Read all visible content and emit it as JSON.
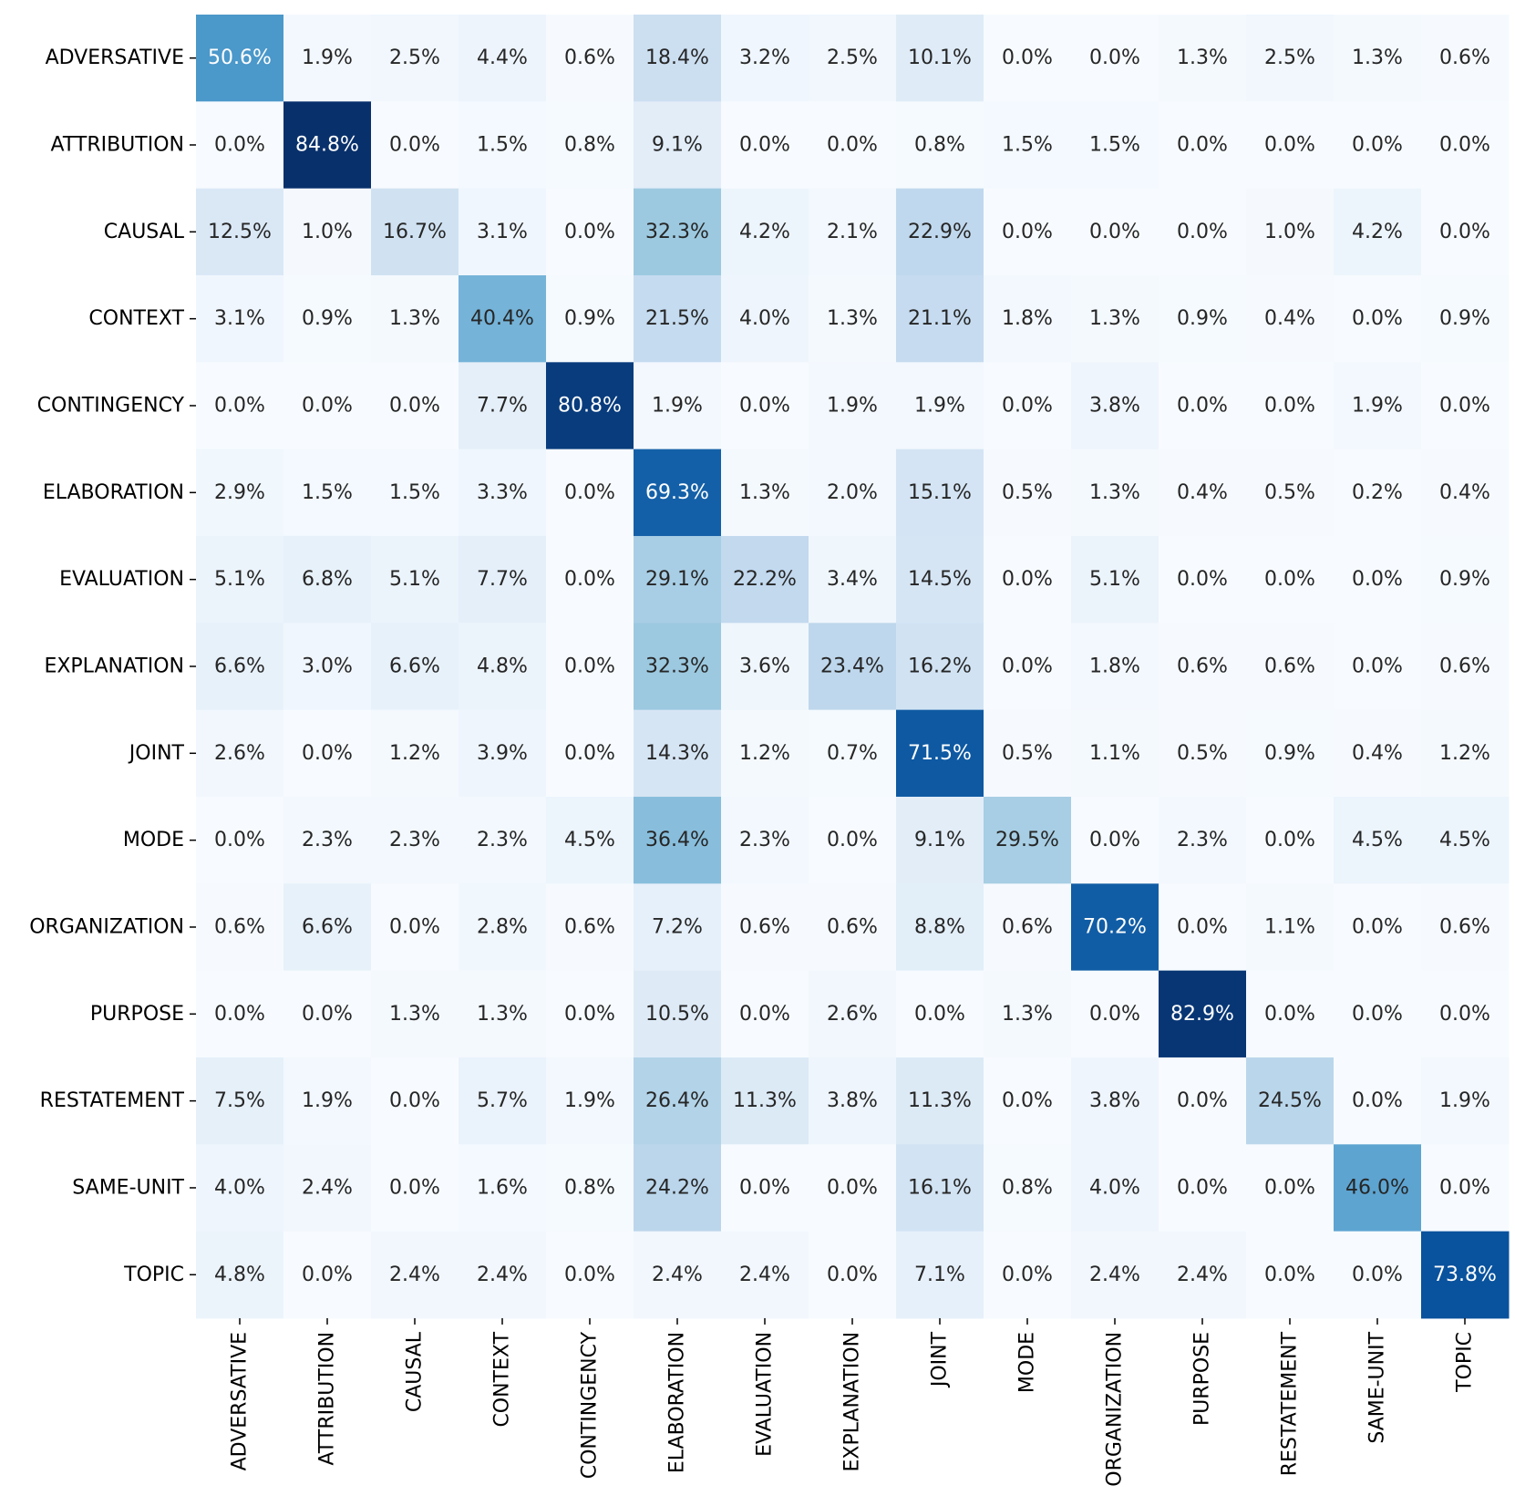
{
  "chart_data": {
    "type": "heatmap",
    "title": "",
    "xlabel": "",
    "ylabel": "",
    "colormap": "Blues",
    "value_format": "percent_1dp",
    "vmin": 0,
    "vmax": 84.8,
    "row_labels": [
      "ADVERSATIVE",
      "ATTRIBUTION",
      "CAUSAL",
      "CONTEXT",
      "CONTINGENCY",
      "ELABORATION",
      "EVALUATION",
      "EXPLANATION",
      "JOINT",
      "MODE",
      "ORGANIZATION",
      "PURPOSE",
      "RESTATEMENT",
      "SAME-UNIT",
      "TOPIC"
    ],
    "col_labels": [
      "ADVERSATIVE",
      "ATTRIBUTION",
      "CAUSAL",
      "CONTEXT",
      "CONTINGENCY",
      "ELABORATION",
      "EVALUATION",
      "EXPLANATION",
      "JOINT",
      "MODE",
      "ORGANIZATION",
      "PURPOSE",
      "RESTATEMENT",
      "SAME-UNIT",
      "TOPIC"
    ],
    "values": [
      [
        50.6,
        1.9,
        2.5,
        4.4,
        0.6,
        18.4,
        3.2,
        2.5,
        10.1,
        0.0,
        0.0,
        1.3,
        2.5,
        1.3,
        0.6
      ],
      [
        0.0,
        84.8,
        0.0,
        1.5,
        0.8,
        9.1,
        0.0,
        0.0,
        0.8,
        1.5,
        1.5,
        0.0,
        0.0,
        0.0,
        0.0
      ],
      [
        12.5,
        1.0,
        16.7,
        3.1,
        0.0,
        32.3,
        4.2,
        2.1,
        22.9,
        0.0,
        0.0,
        0.0,
        1.0,
        4.2,
        0.0
      ],
      [
        3.1,
        0.9,
        1.3,
        40.4,
        0.9,
        21.5,
        4.0,
        1.3,
        21.1,
        1.8,
        1.3,
        0.9,
        0.4,
        0.0,
        0.9
      ],
      [
        0.0,
        0.0,
        0.0,
        7.7,
        80.8,
        1.9,
        0.0,
        1.9,
        1.9,
        0.0,
        3.8,
        0.0,
        0.0,
        1.9,
        0.0
      ],
      [
        2.9,
        1.5,
        1.5,
        3.3,
        0.0,
        69.3,
        1.3,
        2.0,
        15.1,
        0.5,
        1.3,
        0.4,
        0.5,
        0.2,
        0.4
      ],
      [
        5.1,
        6.8,
        5.1,
        7.7,
        0.0,
        29.1,
        22.2,
        3.4,
        14.5,
        0.0,
        5.1,
        0.0,
        0.0,
        0.0,
        0.9
      ],
      [
        6.6,
        3.0,
        6.6,
        4.8,
        0.0,
        32.3,
        3.6,
        23.4,
        16.2,
        0.0,
        1.8,
        0.6,
        0.6,
        0.0,
        0.6
      ],
      [
        2.6,
        0.0,
        1.2,
        3.9,
        0.0,
        14.3,
        1.2,
        0.7,
        71.5,
        0.5,
        1.1,
        0.5,
        0.9,
        0.4,
        1.2
      ],
      [
        0.0,
        2.3,
        2.3,
        2.3,
        4.5,
        36.4,
        2.3,
        0.0,
        9.1,
        29.5,
        0.0,
        2.3,
        0.0,
        4.5,
        4.5
      ],
      [
        0.6,
        6.6,
        0.0,
        2.8,
        0.6,
        7.2,
        0.6,
        0.6,
        8.8,
        0.6,
        70.2,
        0.0,
        1.1,
        0.0,
        0.6
      ],
      [
        0.0,
        0.0,
        1.3,
        1.3,
        0.0,
        10.5,
        0.0,
        2.6,
        0.0,
        1.3,
        0.0,
        82.9,
        0.0,
        0.0,
        0.0
      ],
      [
        7.5,
        1.9,
        0.0,
        5.7,
        1.9,
        26.4,
        11.3,
        3.8,
        11.3,
        0.0,
        3.8,
        0.0,
        24.5,
        0.0,
        1.9
      ],
      [
        4.0,
        2.4,
        0.0,
        1.6,
        0.8,
        24.2,
        0.0,
        0.0,
        16.1,
        0.8,
        4.0,
        0.0,
        0.0,
        46.0,
        0.0
      ],
      [
        4.8,
        0.0,
        2.4,
        2.4,
        0.0,
        2.4,
        2.4,
        0.0,
        7.1,
        0.0,
        2.4,
        2.4,
        0.0,
        0.0,
        73.8
      ]
    ],
    "grid": false,
    "colorbar": false
  }
}
